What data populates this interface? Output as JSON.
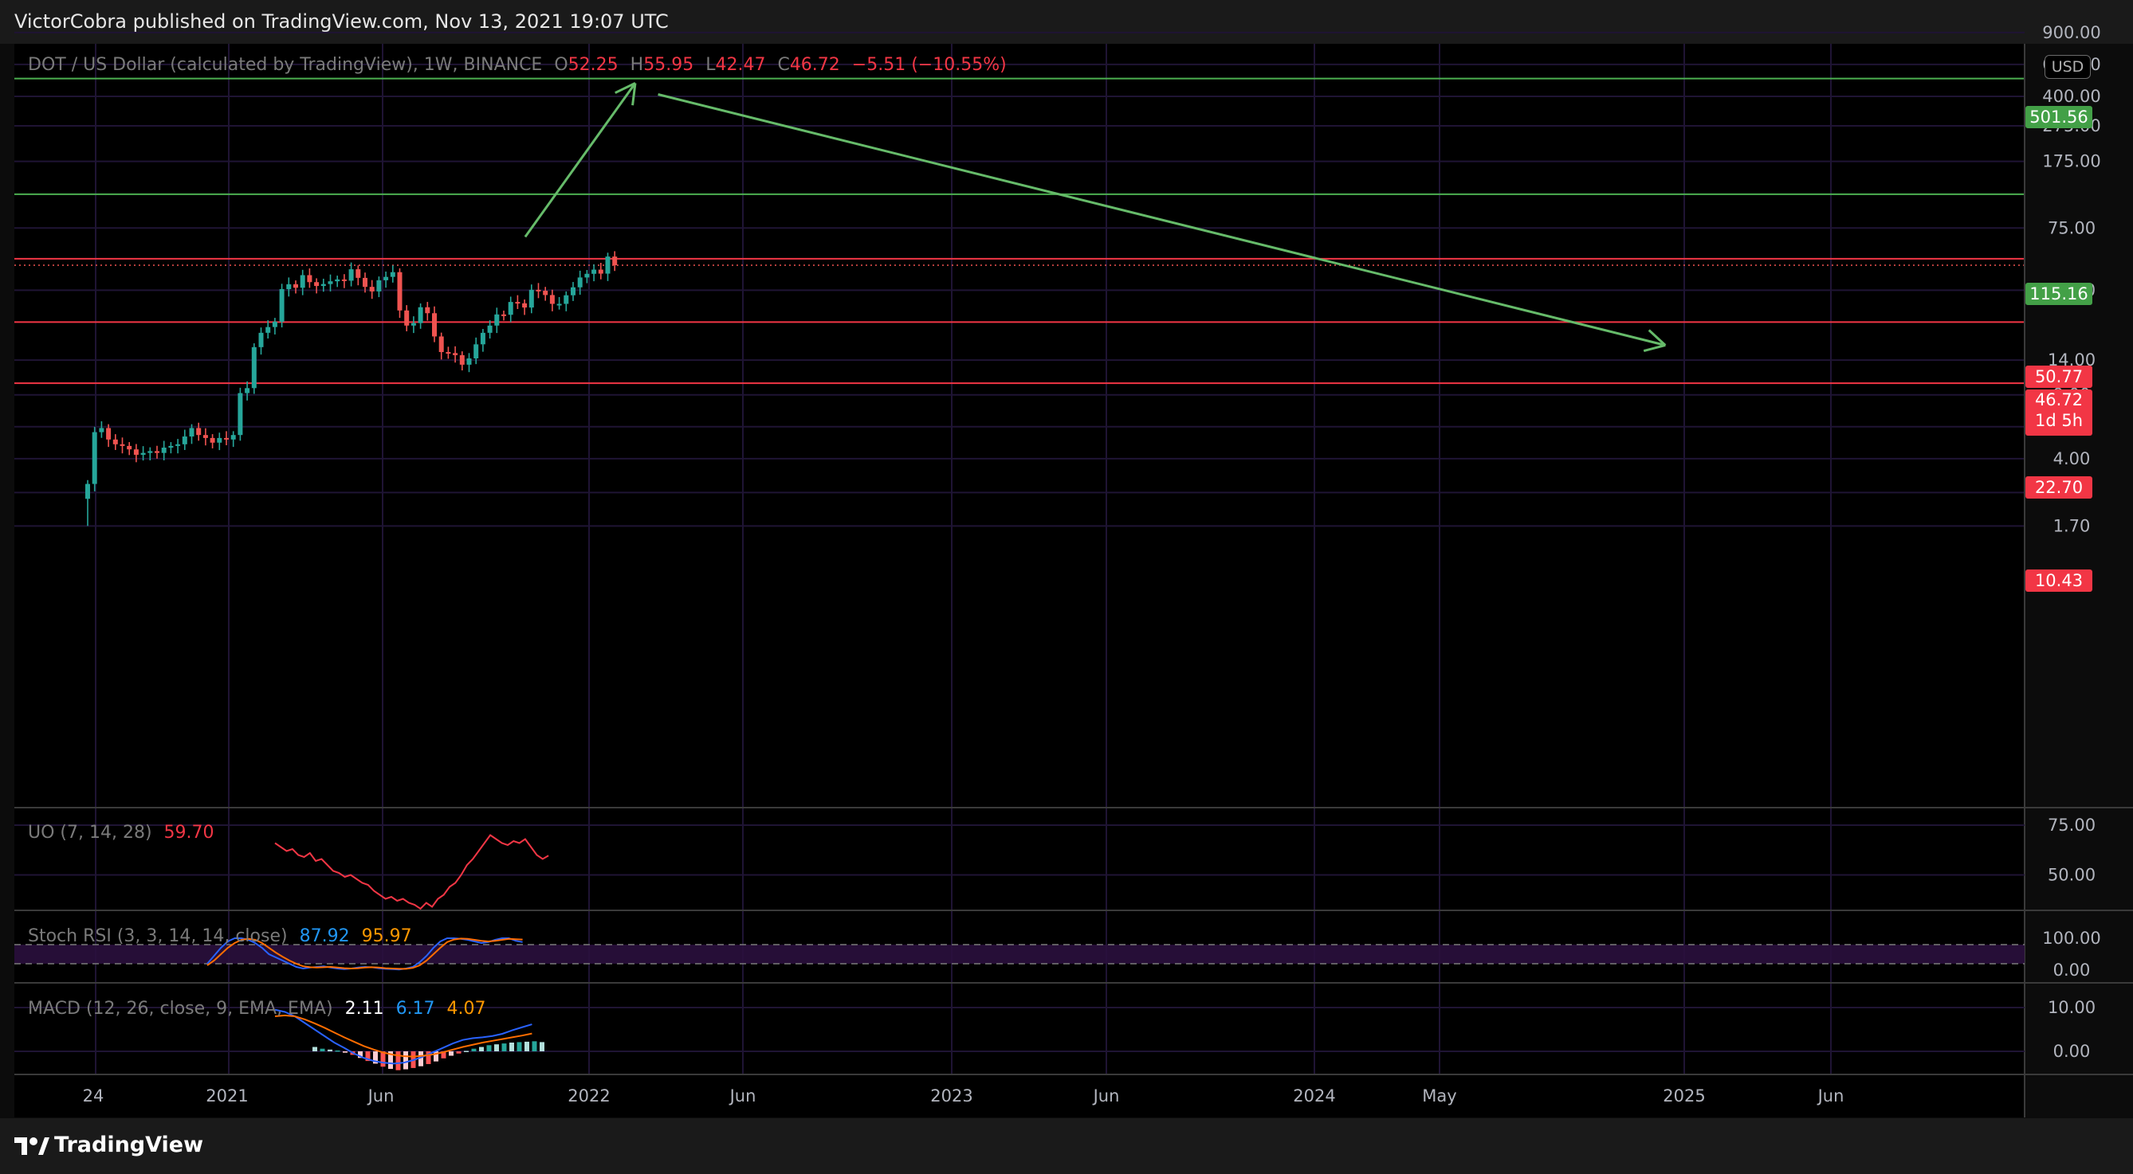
{
  "header": {
    "publisher": "VictorCobra published on TradingView.com, Nov 13, 2021 19:07 UTC"
  },
  "brand": {
    "name": "TradingView",
    "icon": "tradingview-logo-icon"
  },
  "symbol": {
    "title": "DOT / US Dollar (calculated by TradingView), 1W, BINANCE",
    "o_label": "O",
    "o": "52.25",
    "h_label": "H",
    "h": "55.95",
    "l_label": "L",
    "l": "42.47",
    "c_label": "C",
    "c": "46.72",
    "change": "−5.51 (−10.55%)"
  },
  "currency_button": "USD",
  "colors": {
    "up": "#26a69a",
    "down": "#ef5350",
    "grid": "#1f1434",
    "green_level": "#4caf50",
    "red_level": "#f23645",
    "uo": "#f23645",
    "stoch_k": "#2962ff",
    "stoch_d": "#ff6d00",
    "macd": "#2962ff",
    "signal": "#ff6d00"
  },
  "chart_data": {
    "type": "candlestick",
    "scale": "log",
    "x_ticks": [
      "24",
      "2021",
      "Jun",
      "2022",
      "Jun",
      "2023",
      "Jun",
      "2024",
      "May",
      "2025",
      "Jun"
    ],
    "y_ticks": [
      "900.00",
      "600.00",
      "400.00",
      "275.00",
      "175.00",
      "75.00",
      "34.00",
      "14.00",
      "9.00",
      "6.00",
      "4.00",
      "2.60",
      "1.70"
    ],
    "ylim": [
      1.6,
      950
    ],
    "price_levels": [
      {
        "label": "501.56",
        "value": 501.56,
        "color": "green"
      },
      {
        "label": "115.16",
        "value": 115.16,
        "color": "green"
      },
      {
        "label": "50.77",
        "value": 50.77,
        "color": "red"
      },
      {
        "label": "22.70",
        "value": 22.7,
        "color": "red"
      },
      {
        "label": "10.43",
        "value": 10.43,
        "color": "red"
      }
    ],
    "last_price": {
      "label": "46.72",
      "value": 46.72,
      "countdown": "1d 5h"
    },
    "weekly_close": [
      2.9,
      5.6,
      5.9,
      5.1,
      4.8,
      4.7,
      4.5,
      4.2,
      4.3,
      4.4,
      4.3,
      4.6,
      4.7,
      4.8,
      5.3,
      5.9,
      5.4,
      5.2,
      4.9,
      5.2,
      5.1,
      5.4,
      9.2,
      9.8,
      16.5,
      19.8,
      21.3,
      22.8,
      34.5,
      36.7,
      35.1,
      41.2,
      37.7,
      35.9,
      36.8,
      38.1,
      39.0,
      38.4,
      44.4,
      39.8,
      35.5,
      33.5,
      38.6,
      40.3,
      42.8,
      26.3,
      21.7,
      22.4,
      27.4,
      25.4,
      18.9,
      15.5,
      15.3,
      14.9,
      13.2,
      14.3,
      17.1,
      19.8,
      21.7,
      25.0,
      24.9,
      29.3,
      28.8,
      27.3,
      34.2,
      33.8,
      32.0,
      28.6,
      28.6,
      31.9,
      35.3,
      40.0,
      41.9,
      44.2,
      42.0,
      52.2,
      46.72
    ],
    "annotations": [
      {
        "type": "arrow",
        "from": [
          "2021-10-27",
          67.0
        ],
        "to": [
          "2022-02-15",
          473.0
        ],
        "color": "green"
      },
      {
        "type": "arrow",
        "from": [
          "2022-03-10",
          410.0
        ],
        "to": [
          "2024-12-20",
          16.9
        ],
        "color": "green"
      }
    ],
    "indicators": [
      {
        "name": "UO",
        "params": "(7, 14, 28)",
        "values": [
          "59.70"
        ],
        "y_ticks": [
          "75.00",
          "50.00"
        ]
      },
      {
        "name": "Stoch RSI",
        "params": "(3, 3, 14, 14, close)",
        "values": [
          "87.92",
          "95.97"
        ],
        "y_ticks": [
          "100.00",
          "0.00"
        ]
      },
      {
        "name": "MACD",
        "params": "(12, 26, close, 9, EMA, EMA)",
        "values": [
          "2.11",
          "6.17",
          "4.07"
        ],
        "y_ticks": [
          "10.00",
          "0.00"
        ]
      }
    ]
  }
}
